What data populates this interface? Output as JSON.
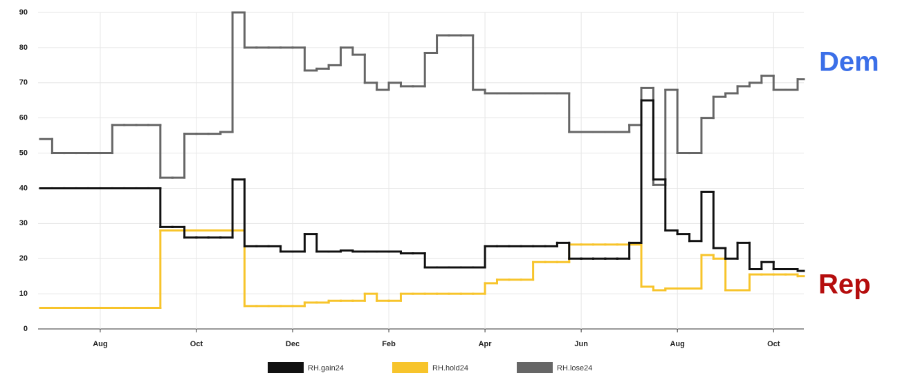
{
  "chart_data": {
    "type": "line",
    "line_shape": "step",
    "categories": [
      null,
      null,
      null,
      null,
      null,
      "Aug",
      null,
      null,
      null,
      null,
      null,
      null,
      null,
      "Oct",
      null,
      null,
      null,
      null,
      null,
      null,
      null,
      "Dec",
      null,
      null,
      null,
      null,
      null,
      null,
      null,
      "Feb",
      null,
      null,
      null,
      null,
      null,
      null,
      null,
      "Apr",
      null,
      null,
      null,
      null,
      null,
      null,
      null,
      "Jun",
      null,
      null,
      null,
      null,
      null,
      null,
      null,
      "Aug",
      null,
      null,
      null,
      null,
      null,
      null,
      null,
      "Oct",
      null,
      null
    ],
    "series": [
      {
        "name": "RH.gain24",
        "color": "#111111",
        "values": [
          40,
          40,
          40,
          40,
          40,
          40,
          40,
          40,
          40,
          40,
          29,
          29,
          26,
          26,
          26,
          26,
          42.5,
          23.5,
          23.5,
          23.5,
          22,
          22,
          27,
          22,
          22,
          22.3,
          22,
          22,
          22,
          22,
          21.5,
          21.5,
          17.5,
          17.5,
          17.5,
          17.5,
          17.5,
          23.5,
          23.5,
          23.5,
          23.5,
          23.5,
          23.5,
          24.5,
          20,
          20,
          20,
          20,
          20,
          24.5,
          65,
          42.5,
          28,
          27,
          25,
          39,
          23,
          20,
          24.5,
          17,
          19,
          17,
          17,
          16.5
        ]
      },
      {
        "name": "RH.hold24",
        "color": "#f7c42b",
        "values": [
          6,
          6,
          6,
          6,
          6,
          6,
          6,
          6,
          6,
          6,
          28,
          28,
          28,
          28,
          28,
          28,
          28,
          6.5,
          6.5,
          6.5,
          6.5,
          6.5,
          7.5,
          7.5,
          8,
          8,
          8,
          10,
          8,
          8,
          10,
          10,
          10,
          10,
          10,
          10,
          10,
          13,
          14,
          14,
          14,
          19,
          19,
          19,
          24,
          24,
          24,
          24,
          24,
          24,
          12,
          11,
          11.5,
          11.5,
          11.5,
          21,
          20,
          11,
          11,
          15.5,
          15.5,
          15.5,
          15.5,
          15
        ]
      },
      {
        "name": "RH.lose24",
        "color": "#666666",
        "values": [
          54,
          50,
          50,
          50,
          50,
          50,
          58,
          58,
          58,
          58,
          43,
          43,
          55.5,
          55.5,
          55.5,
          56,
          90,
          80,
          80,
          80,
          80,
          80,
          73.5,
          74,
          75,
          80,
          78,
          70,
          68,
          70,
          69,
          69,
          78.5,
          83.5,
          83.5,
          83.5,
          68,
          67,
          67,
          67,
          67,
          67,
          67,
          67,
          56,
          56,
          56,
          56,
          56,
          58,
          68.5,
          41,
          68,
          50,
          50,
          60,
          66,
          67,
          69,
          70,
          72,
          68,
          68,
          71
        ]
      }
    ],
    "ylim": [
      0,
      90
    ],
    "yticks": [
      0,
      10,
      20,
      30,
      40,
      50,
      60,
      70,
      80,
      90
    ],
    "grid": true,
    "annotations": [
      {
        "text": "Dem",
        "color": "#3b6fe8"
      },
      {
        "text": "Rep",
        "color": "#b50d0d"
      }
    ]
  }
}
